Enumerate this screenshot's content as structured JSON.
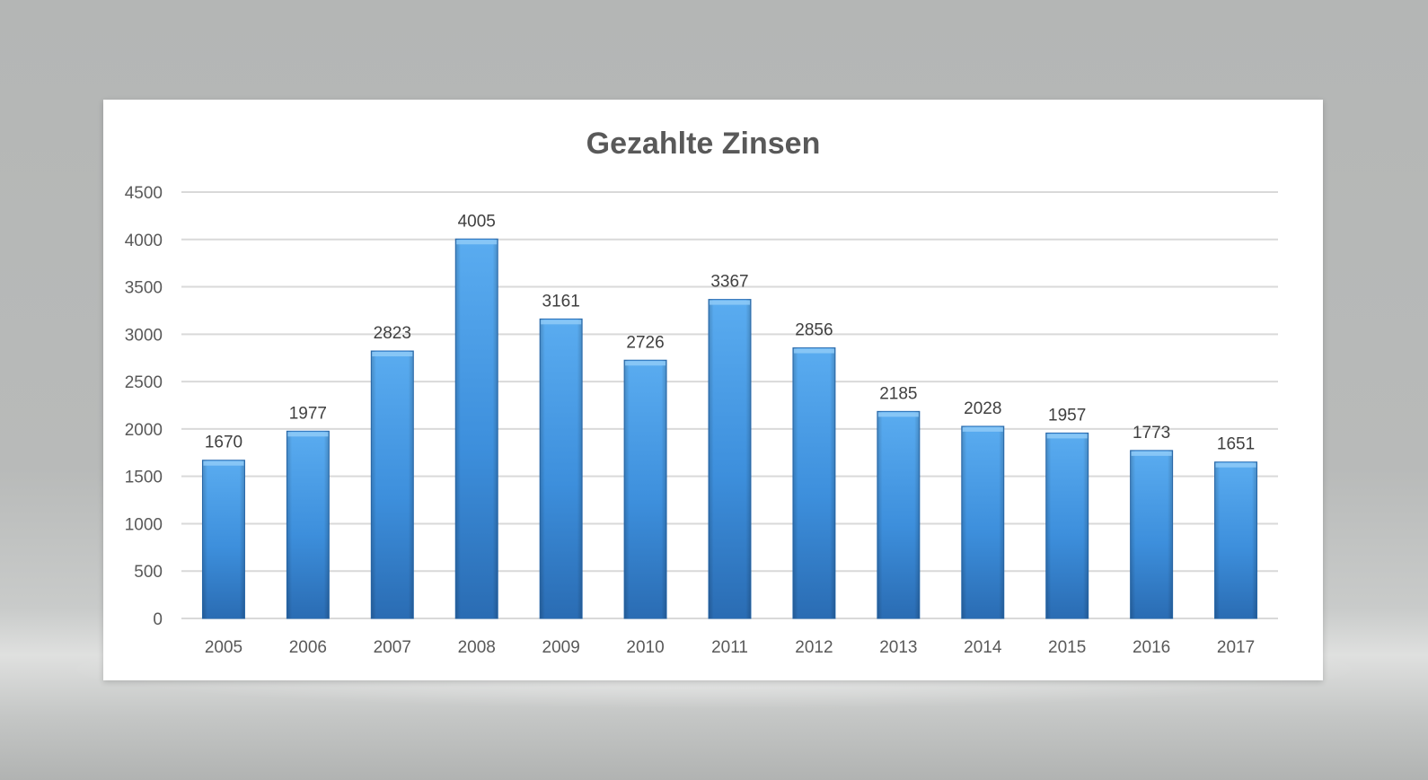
{
  "chart_data": {
    "type": "bar",
    "title": "Gezahlte Zinsen",
    "xlabel": "",
    "ylabel": "",
    "categories": [
      "2005",
      "2006",
      "2007",
      "2008",
      "2009",
      "2010",
      "2011",
      "2012",
      "2013",
      "2014",
      "2015",
      "2016",
      "2017"
    ],
    "values": [
      1670,
      1977,
      2823,
      4005,
      3161,
      2726,
      3367,
      2856,
      2185,
      2028,
      1957,
      1773,
      1651
    ],
    "ylim": [
      0,
      4500
    ],
    "yticks": [
      "0",
      "500",
      "1000",
      "1500",
      "2000",
      "2500",
      "3000",
      "3500",
      "4000",
      "4500"
    ],
    "grid": true,
    "legend": "none",
    "data_labels": true,
    "colors": {
      "bar_top": "#5aacf0",
      "bar_mid": "#3d8fdc",
      "bar_bottom": "#2a6cb3",
      "bar_cap": "#8fcaf7"
    }
  }
}
